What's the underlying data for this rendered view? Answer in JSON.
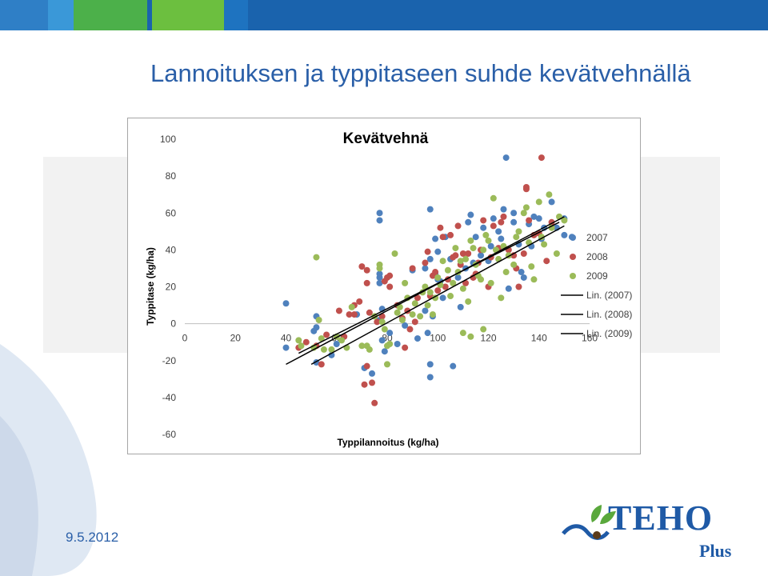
{
  "slide": {
    "title": "Lannoituksen ja typpitaseen suhde kevätvehnällä",
    "date": "9.5.2012",
    "logo_text": "TEHO",
    "logo_sub": "Plus"
  },
  "colors": {
    "header_blue": "#1a63ad",
    "header_green": "#5aa83c",
    "title_blue": "#2a5fa8",
    "s2007": "#4f81bd",
    "s2008": "#c0504d",
    "s2009": "#9bbb59"
  },
  "chart_data": {
    "type": "scatter",
    "title": "Kevätvehnä",
    "xlabel": "Typpilannoitus (kg/ha)",
    "ylabel": "Typpitase (kg/ha)",
    "xlim": [
      0,
      160
    ],
    "ylim": [
      -60,
      100
    ],
    "xticks": [
      "0",
      "20",
      "40",
      "60",
      "80",
      "100",
      "120",
      "140",
      "160"
    ],
    "yticks": [
      "100",
      "80",
      "60",
      "40",
      "20",
      "0",
      "-20",
      "-40",
      "-60"
    ],
    "grid": false,
    "legend_position": "right",
    "legend": [
      "2007",
      "2008",
      "2009",
      "Lin. (2007)",
      "Lin. (2008)",
      "Lin. (2009)"
    ],
    "series": [
      {
        "name": "2007",
        "color": "#4f81bd",
        "points": [
          [
            40,
            11
          ],
          [
            40,
            -13
          ],
          [
            51,
            -4
          ],
          [
            52,
            4
          ],
          [
            52,
            -2
          ],
          [
            52,
            -21
          ],
          [
            58,
            -17
          ],
          [
            60,
            -11
          ],
          [
            71,
            -24
          ],
          [
            74,
            -27
          ],
          [
            77,
            2
          ],
          [
            77,
            60
          ],
          [
            77,
            56
          ],
          [
            77,
            27
          ],
          [
            77,
            25
          ],
          [
            77,
            22
          ],
          [
            78,
            8
          ],
          [
            78,
            -9
          ],
          [
            79,
            -15
          ],
          [
            81,
            -5
          ],
          [
            84,
            -11
          ],
          [
            87,
            -1
          ],
          [
            90,
            29
          ],
          [
            92,
            -8
          ],
          [
            95,
            7
          ],
          [
            95,
            30
          ],
          [
            96,
            -5
          ],
          [
            97,
            62
          ],
          [
            97,
            35
          ],
          [
            97,
            -22
          ],
          [
            97,
            -29
          ],
          [
            98,
            4
          ],
          [
            99,
            46
          ],
          [
            99,
            27
          ],
          [
            100,
            39
          ],
          [
            100,
            24
          ],
          [
            101,
            23
          ],
          [
            102,
            14
          ],
          [
            103,
            47
          ],
          [
            105,
            35
          ],
          [
            106,
            -23
          ],
          [
            108,
            25
          ],
          [
            109,
            9
          ],
          [
            111,
            30
          ],
          [
            112,
            55
          ],
          [
            113,
            59
          ],
          [
            114,
            33
          ],
          [
            115,
            47
          ],
          [
            117,
            37
          ],
          [
            118,
            52
          ],
          [
            120,
            34
          ],
          [
            121,
            42
          ],
          [
            122,
            57
          ],
          [
            124,
            50
          ],
          [
            125,
            46
          ],
          [
            126,
            62
          ],
          [
            127,
            90
          ],
          [
            128,
            19
          ],
          [
            130,
            55
          ],
          [
            130,
            60
          ],
          [
            132,
            43
          ],
          [
            133,
            28
          ],
          [
            134,
            25
          ],
          [
            136,
            54
          ],
          [
            137,
            42
          ],
          [
            138,
            58
          ],
          [
            140,
            57
          ],
          [
            141,
            46
          ],
          [
            142,
            52
          ],
          [
            145,
            66
          ],
          [
            147,
            52
          ],
          [
            150,
            57
          ],
          [
            150,
            48
          ],
          [
            153,
            47
          ],
          [
            68,
            5
          ]
        ]
      },
      {
        "name": "2008",
        "color": "#c0504d",
        "points": [
          [
            45,
            -13
          ],
          [
            48,
            -10
          ],
          [
            52,
            -12
          ],
          [
            54,
            -22
          ],
          [
            56,
            -6
          ],
          [
            61,
            7
          ],
          [
            65,
            5
          ],
          [
            67,
            5
          ],
          [
            67,
            10
          ],
          [
            69,
            12
          ],
          [
            70,
            31
          ],
          [
            72,
            29
          ],
          [
            72,
            22
          ],
          [
            73,
            6
          ],
          [
            75,
            -43
          ],
          [
            76,
            1
          ],
          [
            78,
            4
          ],
          [
            79,
            23
          ],
          [
            80,
            25
          ],
          [
            81,
            20
          ],
          [
            81,
            26
          ],
          [
            84,
            10
          ],
          [
            86,
            3
          ],
          [
            87,
            -13
          ],
          [
            88,
            7
          ],
          [
            89,
            -3
          ],
          [
            90,
            30
          ],
          [
            91,
            1
          ],
          [
            92,
            14
          ],
          [
            95,
            33
          ],
          [
            96,
            39
          ],
          [
            97,
            15
          ],
          [
            98,
            26
          ],
          [
            99,
            28
          ],
          [
            100,
            18
          ],
          [
            101,
            52
          ],
          [
            102,
            47
          ],
          [
            103,
            20
          ],
          [
            104,
            24
          ],
          [
            105,
            48
          ],
          [
            106,
            36
          ],
          [
            107,
            37
          ],
          [
            108,
            53
          ],
          [
            109,
            32
          ],
          [
            110,
            38
          ],
          [
            111,
            22
          ],
          [
            112,
            38
          ],
          [
            114,
            25
          ],
          [
            115,
            27
          ],
          [
            116,
            33
          ],
          [
            117,
            40
          ],
          [
            118,
            56
          ],
          [
            120,
            20
          ],
          [
            121,
            36
          ],
          [
            122,
            53
          ],
          [
            124,
            41
          ],
          [
            125,
            55
          ],
          [
            126,
            58
          ],
          [
            128,
            40
          ],
          [
            130,
            37
          ],
          [
            131,
            30
          ],
          [
            132,
            20
          ],
          [
            134,
            38
          ],
          [
            135,
            73
          ],
          [
            135,
            74
          ],
          [
            136,
            56
          ],
          [
            138,
            48
          ],
          [
            140,
            49
          ],
          [
            141,
            90
          ],
          [
            143,
            34
          ],
          [
            145,
            55
          ],
          [
            74,
            -32
          ],
          [
            71,
            -33
          ],
          [
            72,
            -23
          ],
          [
            63,
            -7
          ]
        ]
      },
      {
        "name": "2009",
        "color": "#9bbb59",
        "points": [
          [
            45,
            -9
          ],
          [
            46,
            -12
          ],
          [
            51,
            -13
          ],
          [
            52,
            36
          ],
          [
            53,
            2
          ],
          [
            54,
            -8
          ],
          [
            55,
            -14
          ],
          [
            58,
            -14
          ],
          [
            60,
            -7
          ],
          [
            62,
            -9
          ],
          [
            64,
            -13
          ],
          [
            66,
            9
          ],
          [
            70,
            -12
          ],
          [
            72,
            -12
          ],
          [
            73,
            -14
          ],
          [
            75,
            4
          ],
          [
            77,
            32
          ],
          [
            77,
            30
          ],
          [
            78,
            1
          ],
          [
            79,
            -3
          ],
          [
            80,
            -22
          ],
          [
            80,
            -12
          ],
          [
            81,
            -11
          ],
          [
            83,
            38
          ],
          [
            84,
            6
          ],
          [
            85,
            9
          ],
          [
            86,
            2
          ],
          [
            87,
            22
          ],
          [
            88,
            14
          ],
          [
            90,
            5
          ],
          [
            91,
            11
          ],
          [
            93,
            4
          ],
          [
            94,
            17
          ],
          [
            95,
            20
          ],
          [
            96,
            10
          ],
          [
            97,
            17
          ],
          [
            98,
            5
          ],
          [
            99,
            14
          ],
          [
            100,
            25
          ],
          [
            101,
            21
          ],
          [
            102,
            34
          ],
          [
            104,
            29
          ],
          [
            105,
            15
          ],
          [
            106,
            22
          ],
          [
            107,
            41
          ],
          [
            108,
            28
          ],
          [
            109,
            34
          ],
          [
            110,
            19
          ],
          [
            111,
            35
          ],
          [
            112,
            12
          ],
          [
            113,
            45
          ],
          [
            114,
            41
          ],
          [
            115,
            32
          ],
          [
            116,
            26
          ],
          [
            117,
            24
          ],
          [
            118,
            40
          ],
          [
            119,
            48
          ],
          [
            120,
            45
          ],
          [
            121,
            22
          ],
          [
            122,
            68
          ],
          [
            123,
            40
          ],
          [
            124,
            35
          ],
          [
            125,
            14
          ],
          [
            126,
            42
          ],
          [
            127,
            28
          ],
          [
            128,
            37
          ],
          [
            130,
            32
          ],
          [
            131,
            47
          ],
          [
            132,
            50
          ],
          [
            134,
            60
          ],
          [
            135,
            63
          ],
          [
            136,
            44
          ],
          [
            137,
            31
          ],
          [
            138,
            24
          ],
          [
            140,
            66
          ],
          [
            141,
            47
          ],
          [
            142,
            43
          ],
          [
            144,
            70
          ],
          [
            145,
            52
          ],
          [
            147,
            38
          ],
          [
            148,
            58
          ],
          [
            150,
            56
          ],
          [
            113,
            -7
          ],
          [
            110,
            -5
          ],
          [
            118,
            -3
          ]
        ]
      }
    ],
    "trendlines": [
      {
        "name": "Lin. (2007)",
        "x": [
          40,
          150
        ],
        "y": [
          -22,
          58
        ]
      },
      {
        "name": "Lin. (2008)",
        "x": [
          50,
          150
        ],
        "y": [
          -22,
          53
        ]
      },
      {
        "name": "Lin. (2009)",
        "x": [
          45,
          148
        ],
        "y": [
          -16,
          55
        ]
      }
    ]
  }
}
